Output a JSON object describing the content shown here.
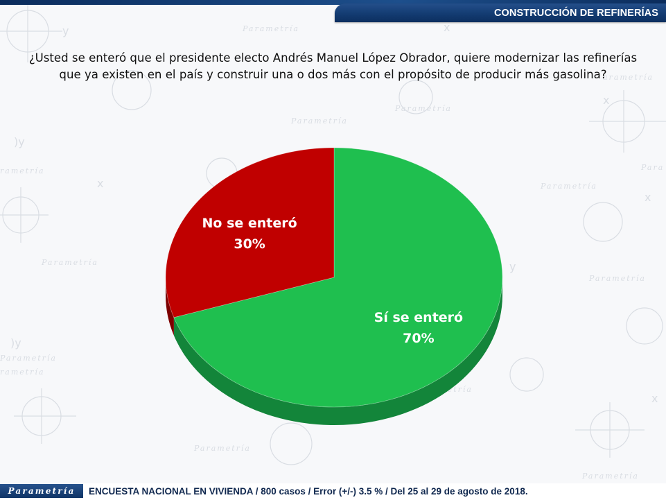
{
  "header": {
    "title": "CONSTRUCCIÓN DE REFINERÍAS"
  },
  "question": {
    "line1": "¿Usted se enteró que el presidente electo Andrés Manuel López Obrador, quiere modernizar las refinerías",
    "line2": "que ya existen en el país y construir una o dos más con el propósito de producir más gasolina?"
  },
  "chart_data": {
    "type": "pie",
    "slices": [
      {
        "label": "Sí se enteró",
        "value": 70,
        "display": "70%",
        "color": "#1fbf4f",
        "side_color": "#13853a"
      },
      {
        "label": "No se enteró",
        "value": 30,
        "display": "30%",
        "color": "#c00000",
        "side_color": "#7d0000"
      }
    ]
  },
  "footer": {
    "brand": "Parametría",
    "note": "ENCUESTA NACIONAL EN VIVIENDA / 800 casos / Error (+/-) 3.5 % / Del 25 al 29 de agosto de 2018."
  }
}
